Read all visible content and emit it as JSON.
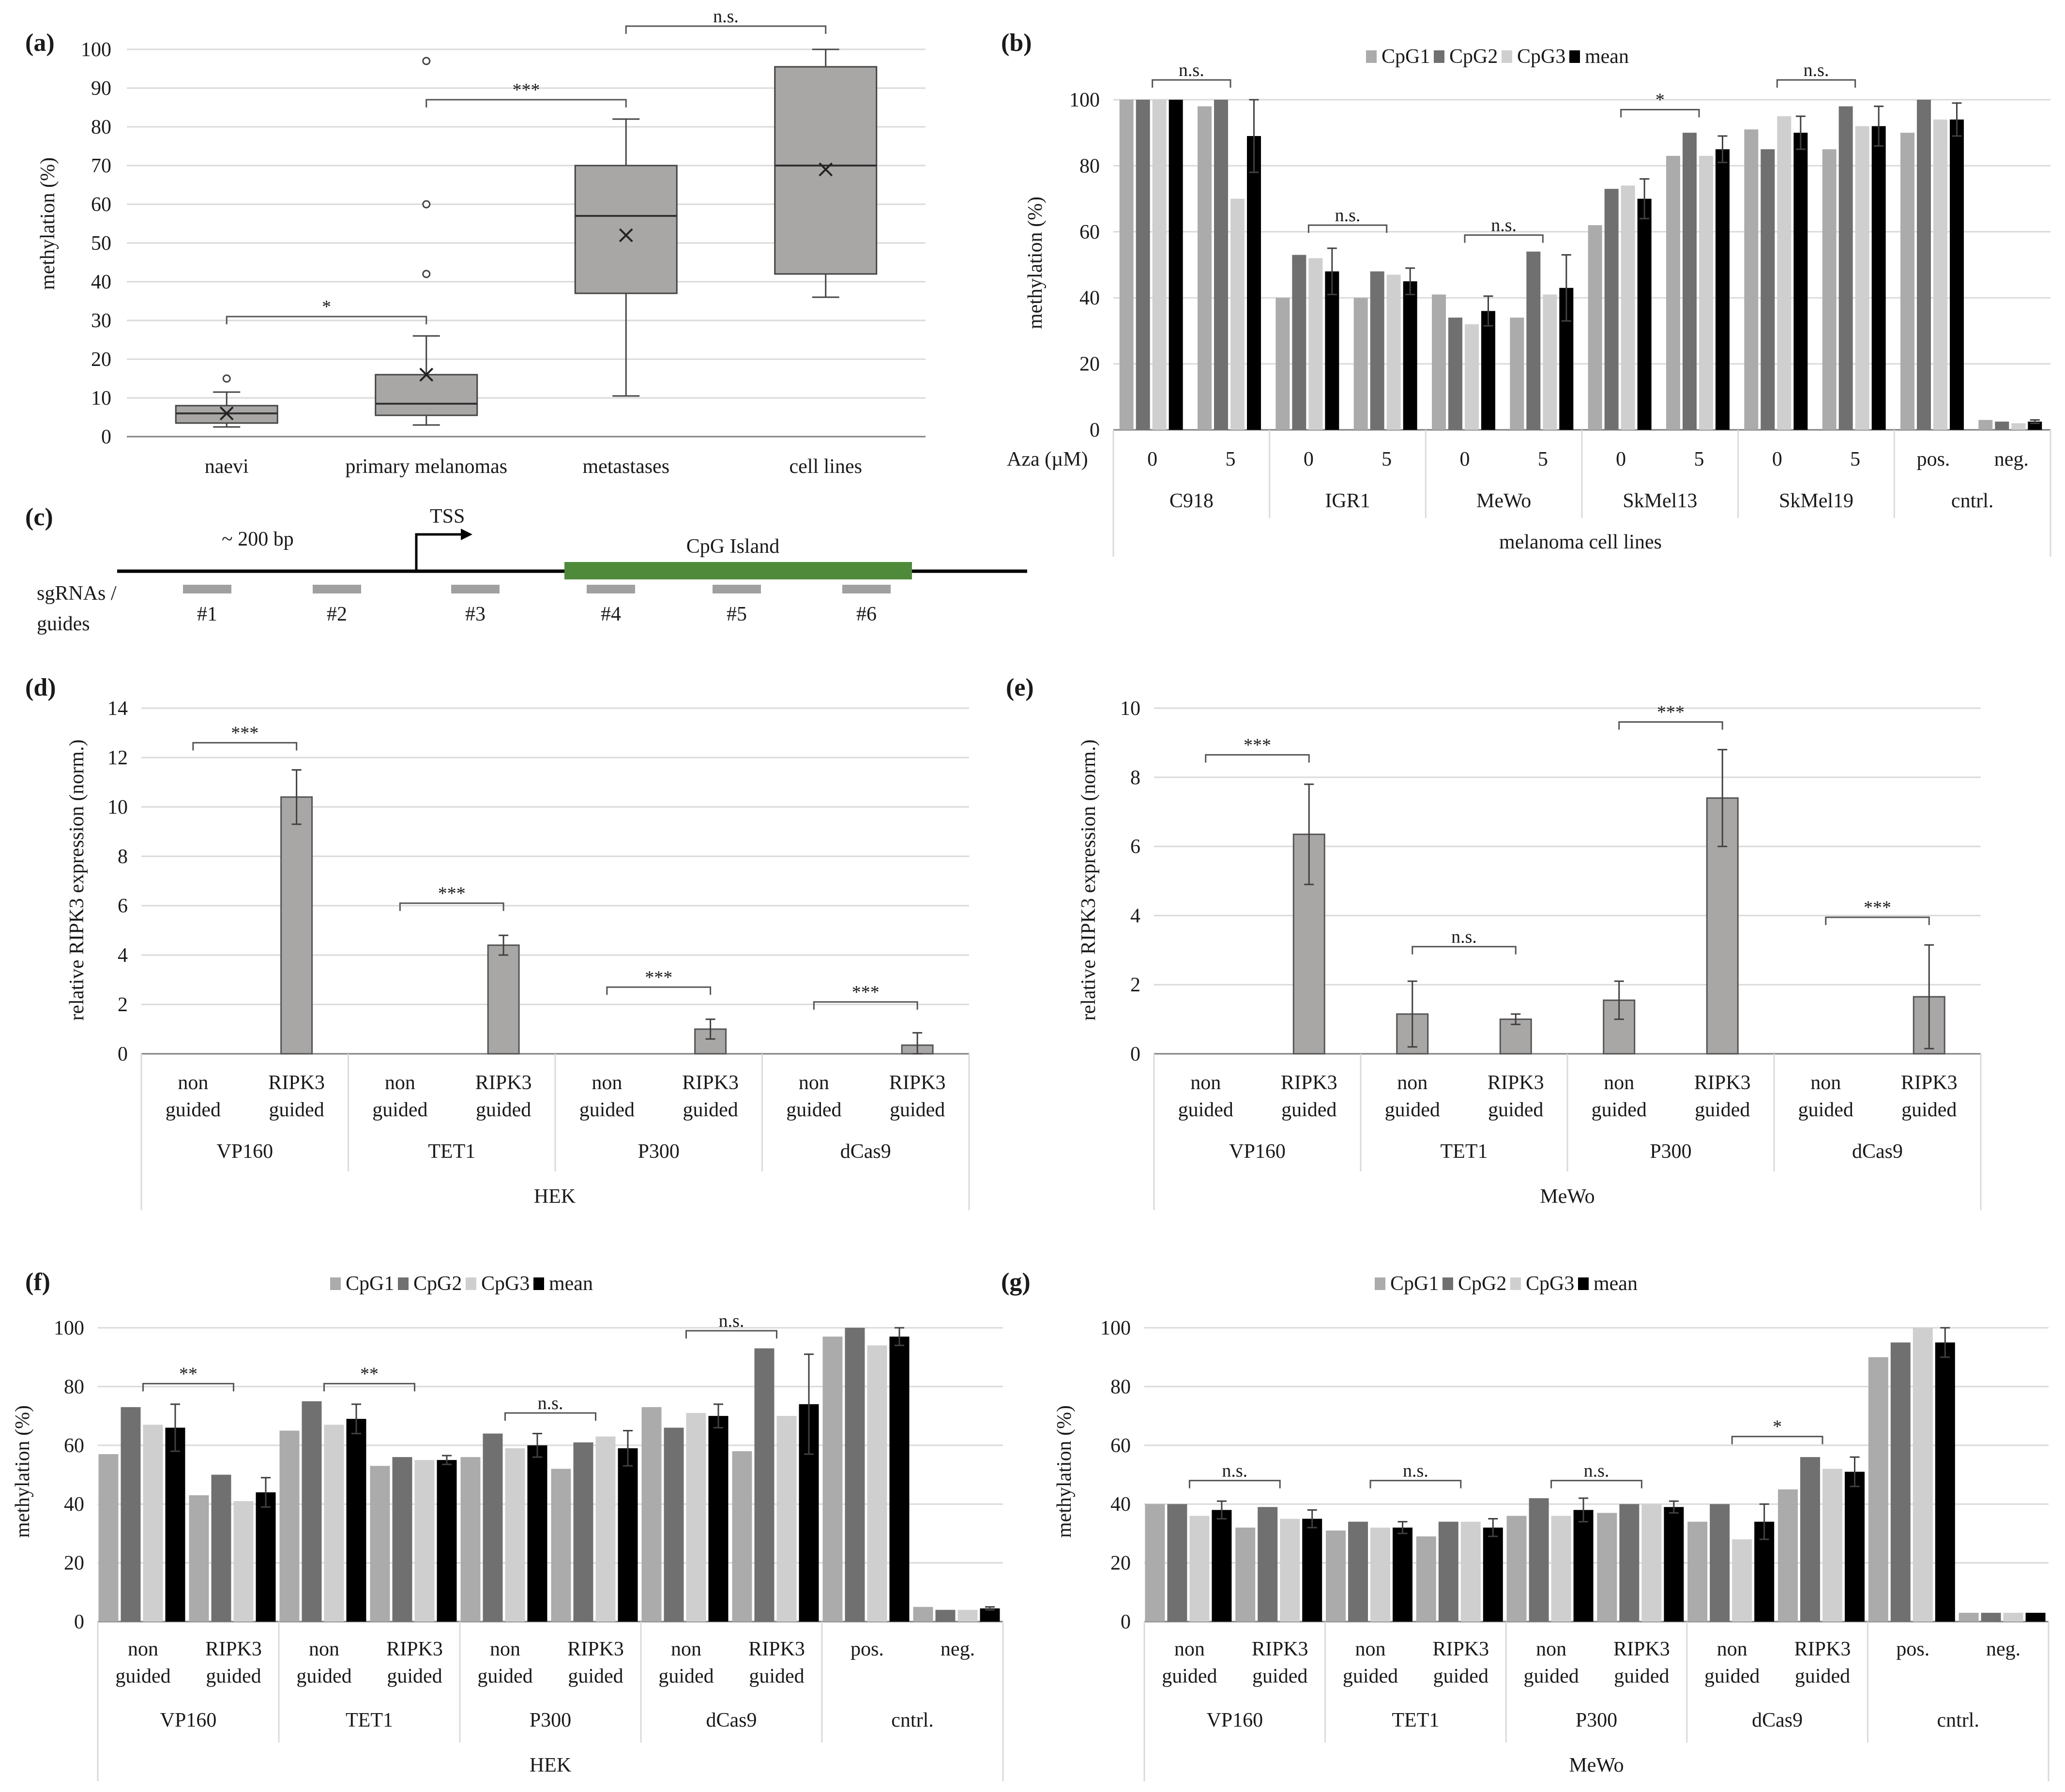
{
  "colors": {
    "cpg1": "#ababab",
    "cpg2": "#707070",
    "cpg3": "#cfcfcf",
    "mean": "#000000",
    "box": "#a9a6a6",
    "green": "#4e8a3a",
    "guide": "#a0a0a0",
    "grid": "#dadada",
    "axis": "#7f7f7f",
    "err": "#404040"
  },
  "chart_data": [
    {
      "id": "a",
      "panel_label": "(a)",
      "type": "box",
      "ylabel": "methylation (%)",
      "ylim": [
        0,
        100
      ],
      "yticks": [
        0,
        10,
        20,
        30,
        40,
        50,
        60,
        70,
        80,
        90,
        100
      ],
      "categories": [
        "naevi",
        "primary melanomas",
        "metastases",
        "cell lines"
      ],
      "boxes": [
        {
          "min": 2.5,
          "q1": 3.5,
          "median": 6,
          "q3": 8,
          "max": 11.5,
          "mean": 6,
          "outliers": [
            15
          ]
        },
        {
          "min": 3,
          "q1": 5.5,
          "median": 8.5,
          "q3": 16,
          "max": 26,
          "mean": 16,
          "outliers": [
            42,
            60,
            97
          ]
        },
        {
          "min": 10.5,
          "q1": 37,
          "median": 57,
          "q3": 70,
          "max": 82,
          "mean": 52,
          "outliers": []
        },
        {
          "min": 36,
          "q1": 42,
          "median": 70,
          "q3": 95.5,
          "max": 100,
          "mean": 69,
          "outliers": []
        }
      ],
      "significance": [
        {
          "from": 0,
          "to": 1,
          "label": "*",
          "y": 31
        },
        {
          "from": 1,
          "to": 2,
          "label": "***",
          "y": 87
        },
        {
          "from": 2,
          "to": 3,
          "label": "n.s.",
          "y": 106
        }
      ]
    },
    {
      "id": "b",
      "panel_label": "(b)",
      "type": "bar",
      "ylabel": "methylation (%)",
      "ylim": [
        0,
        100
      ],
      "yticks": [
        0,
        20,
        40,
        60,
        80,
        100
      ],
      "legend": [
        "CpG1",
        "CpG2",
        "CpG3",
        "mean"
      ],
      "row_label": "Aza (µM)",
      "bottom_label": "melanoma cell lines",
      "groups": [
        {
          "label": "C918",
          "clusters": [
            {
              "label": "0",
              "values": [
                100,
                100,
                100,
                100
              ],
              "err": 0
            },
            {
              "label": "5",
              "values": [
                98,
                100,
                70,
                89
              ],
              "err": 11
            }
          ]
        },
        {
          "label": "IGR1",
          "clusters": [
            {
              "label": "0",
              "values": [
                40,
                53,
                52,
                48
              ],
              "err": 7
            },
            {
              "label": "5",
              "values": [
                40,
                48,
                47,
                45
              ],
              "err": 4
            }
          ]
        },
        {
          "label": "MeWo",
          "clusters": [
            {
              "label": "0",
              "values": [
                41,
                34,
                32,
                36
              ],
              "err": 4.5
            },
            {
              "label": "5",
              "values": [
                34,
                54,
                41,
                43
              ],
              "err": 10
            }
          ]
        },
        {
          "label": "SkMel13",
          "clusters": [
            {
              "label": "0",
              "values": [
                62,
                73,
                74,
                70
              ],
              "err": 6
            },
            {
              "label": "5",
              "values": [
                83,
                90,
                83,
                85
              ],
              "err": 4
            }
          ]
        },
        {
          "label": "SkMel19",
          "clusters": [
            {
              "label": "0",
              "values": [
                91,
                85,
                95,
                90
              ],
              "err": 5
            },
            {
              "label": "5",
              "values": [
                85,
                98,
                92,
                92
              ],
              "err": 6
            }
          ]
        },
        {
          "label": "cntrl.",
          "clusters": [
            {
              "label": "pos.",
              "values": [
                90,
                100,
                94,
                94
              ],
              "err": 5
            },
            {
              "label": "neg.",
              "values": [
                3,
                2.5,
                2,
                2.5
              ],
              "err": 0.5
            }
          ]
        }
      ],
      "significance": [
        {
          "group": 0,
          "label": "n.s.",
          "y": 106
        },
        {
          "group": 1,
          "label": "n.s.",
          "y": 62
        },
        {
          "group": 2,
          "label": "n.s.",
          "y": 59
        },
        {
          "group": 3,
          "label": "*",
          "y": 97
        },
        {
          "group": 4,
          "label": "n.s.",
          "y": 106
        }
      ]
    },
    {
      "id": "c",
      "panel_label": "(c)",
      "type": "diagram",
      "scale_label": "~ 200 bp",
      "tss_label": "TSS",
      "island_label": "CpG Island",
      "guides_label": [
        "sgRNAs /",
        "guides"
      ],
      "guides": [
        "#1",
        "#2",
        "#3",
        "#4",
        "#5",
        "#6"
      ]
    },
    {
      "id": "d",
      "panel_label": "(d)",
      "type": "bar",
      "ylabel": "relative RIPK3 expression (norm.)",
      "ylim": [
        0,
        14
      ],
      "yticks": [
        0,
        2,
        4,
        6,
        8,
        10,
        12,
        14
      ],
      "bottom_label": "HEK",
      "groups": [
        {
          "label": "VP160",
          "clusters": [
            {
              "label": [
                "non",
                "guided"
              ],
              "value": 0,
              "err": 0
            },
            {
              "label": [
                "RIPK3",
                "guided"
              ],
              "value": 10.4,
              "err": 1.1
            }
          ]
        },
        {
          "label": "TET1",
          "clusters": [
            {
              "label": [
                "non",
                "guided"
              ],
              "value": 0,
              "err": 0
            },
            {
              "label": [
                "RIPK3",
                "guided"
              ],
              "value": 4.4,
              "err": 0.4
            }
          ]
        },
        {
          "label": "P300",
          "clusters": [
            {
              "label": [
                "non",
                "guided"
              ],
              "value": 0,
              "err": 0
            },
            {
              "label": [
                "RIPK3",
                "guided"
              ],
              "value": 1,
              "err": 0.4
            }
          ]
        },
        {
          "label": "dCas9",
          "clusters": [
            {
              "label": [
                "non",
                "guided"
              ],
              "value": 0,
              "err": 0
            },
            {
              "label": [
                "RIPK3",
                "guided"
              ],
              "value": 0.35,
              "err": 0.5
            }
          ]
        }
      ],
      "significance": [
        {
          "group": 0,
          "label": "***",
          "y": 12.6
        },
        {
          "group": 1,
          "label": "***",
          "y": 6.1
        },
        {
          "group": 2,
          "label": "***",
          "y": 2.7
        },
        {
          "group": 3,
          "label": "***",
          "y": 2.1
        }
      ]
    },
    {
      "id": "e",
      "panel_label": "(e)",
      "type": "bar",
      "ylabel": "relative RIPK3 expression (norm.)",
      "ylim": [
        0,
        10
      ],
      "yticks": [
        0,
        2,
        4,
        6,
        8,
        10
      ],
      "bottom_label": "MeWo",
      "groups": [
        {
          "label": "VP160",
          "clusters": [
            {
              "label": [
                "non",
                "guided"
              ],
              "value": 0,
              "err": 0
            },
            {
              "label": [
                "RIPK3",
                "guided"
              ],
              "value": 6.35,
              "err": 1.45
            }
          ]
        },
        {
          "label": "TET1",
          "clusters": [
            {
              "label": [
                "non",
                "guided"
              ],
              "value": 1.15,
              "err": 0.95
            },
            {
              "label": [
                "RIPK3",
                "guided"
              ],
              "value": 1,
              "err": 0.15
            }
          ]
        },
        {
          "label": "P300",
          "clusters": [
            {
              "label": [
                "non",
                "guided"
              ],
              "value": 1.55,
              "err": 0.55
            },
            {
              "label": [
                "RIPK3",
                "guided"
              ],
              "value": 7.4,
              "err": 1.4
            }
          ]
        },
        {
          "label": "dCas9",
          "clusters": [
            {
              "label": [
                "non",
                "guided"
              ],
              "value": 0,
              "err": 0
            },
            {
              "label": [
                "RIPK3",
                "guided"
              ],
              "value": 1.65,
              "err": 1.5
            }
          ]
        }
      ],
      "significance": [
        {
          "group": 0,
          "label": "***",
          "y": 8.65
        },
        {
          "group": 1,
          "label": "n.s.",
          "y": 3.1
        },
        {
          "group": 2,
          "label": "***",
          "y": 9.6
        },
        {
          "group": 3,
          "label": "***",
          "y": 3.95
        }
      ]
    },
    {
      "id": "f",
      "panel_label": "(f)",
      "type": "bar",
      "ylabel": "methylation (%)",
      "ylim": [
        0,
        100
      ],
      "yticks": [
        0,
        20,
        40,
        60,
        80,
        100
      ],
      "legend": [
        "CpG1",
        "CpG2",
        "CpG3",
        "mean"
      ],
      "bottom_label": "HEK",
      "groups": [
        {
          "label": "VP160",
          "clusters": [
            {
              "label": [
                "non",
                "guided"
              ],
              "values": [
                57,
                73,
                67,
                66
              ],
              "err": 8
            },
            {
              "label": [
                "RIPK3",
                "guided"
              ],
              "values": [
                43,
                50,
                41,
                44
              ],
              "err": 5
            }
          ]
        },
        {
          "label": "TET1",
          "clusters": [
            {
              "label": [
                "non",
                "guided"
              ],
              "values": [
                65,
                75,
                67,
                69
              ],
              "err": 5
            },
            {
              "label": [
                "RIPK3",
                "guided"
              ],
              "values": [
                53,
                56,
                55,
                55
              ],
              "err": 1.5
            }
          ]
        },
        {
          "label": "P300",
          "clusters": [
            {
              "label": [
                "non",
                "guided"
              ],
              "values": [
                56,
                64,
                59,
                60
              ],
              "err": 4
            },
            {
              "label": [
                "RIPK3",
                "guided"
              ],
              "values": [
                52,
                61,
                63,
                59
              ],
              "err": 6
            }
          ]
        },
        {
          "label": "dCas9",
          "clusters": [
            {
              "label": [
                "non",
                "guided"
              ],
              "values": [
                73,
                66,
                71,
                70
              ],
              "err": 4
            },
            {
              "label": [
                "RIPK3",
                "guided"
              ],
              "values": [
                58,
                93,
                70,
                74
              ],
              "err": 17
            }
          ]
        },
        {
          "label": "cntrl.",
          "clusters": [
            {
              "label": [
                "pos."
              ],
              "values": [
                97,
                100,
                94,
                97
              ],
              "err": 3
            },
            {
              "label": [
                "neg."
              ],
              "values": [
                5,
                4,
                4,
                4.5
              ],
              "err": 0.5
            }
          ]
        }
      ],
      "significance": [
        {
          "group": 0,
          "label": "**",
          "y": 81
        },
        {
          "group": 1,
          "label": "**",
          "y": 81
        },
        {
          "group": 2,
          "label": "n.s.",
          "y": 71
        },
        {
          "group": 3,
          "label": "n.s.",
          "y": 99
        }
      ]
    },
    {
      "id": "g",
      "panel_label": "(g)",
      "type": "bar",
      "ylabel": "methylation (%)",
      "ylim": [
        0,
        100
      ],
      "yticks": [
        0,
        20,
        40,
        60,
        80,
        100
      ],
      "legend": [
        "CpG1",
        "CpG2",
        "CpG3",
        "mean"
      ],
      "bottom_label": "MeWo",
      "groups": [
        {
          "label": "VP160",
          "clusters": [
            {
              "label": [
                "non",
                "guided"
              ],
              "values": [
                40,
                40,
                36,
                38
              ],
              "err": 3
            },
            {
              "label": [
                "RIPK3",
                "guided"
              ],
              "values": [
                32,
                39,
                35,
                35
              ],
              "err": 3
            }
          ]
        },
        {
          "label": "TET1",
          "clusters": [
            {
              "label": [
                "non",
                "guided"
              ],
              "values": [
                31,
                34,
                32,
                32
              ],
              "err": 2
            },
            {
              "label": [
                "RIPK3",
                "guided"
              ],
              "values": [
                29,
                34,
                34,
                32
              ],
              "err": 3
            }
          ]
        },
        {
          "label": "P300",
          "clusters": [
            {
              "label": [
                "non",
                "guided"
              ],
              "values": [
                36,
                42,
                36,
                38
              ],
              "err": 4
            },
            {
              "label": [
                "RIPK3",
                "guided"
              ],
              "values": [
                37,
                40,
                40,
                39
              ],
              "err": 2
            }
          ]
        },
        {
          "label": "dCas9",
          "clusters": [
            {
              "label": [
                "non",
                "guided"
              ],
              "values": [
                34,
                40,
                28,
                34
              ],
              "err": 6
            },
            {
              "label": [
                "RIPK3",
                "guided"
              ],
              "values": [
                45,
                56,
                52,
                51
              ],
              "err": 5
            }
          ]
        },
        {
          "label": "cntrl.",
          "clusters": [
            {
              "label": [
                "pos."
              ],
              "values": [
                90,
                95,
                100,
                95
              ],
              "err": 5
            },
            {
              "label": [
                "neg."
              ],
              "values": [
                3,
                3,
                3,
                3
              ],
              "err": 0
            }
          ]
        }
      ],
      "significance": [
        {
          "group": 0,
          "label": "n.s.",
          "y": 48
        },
        {
          "group": 1,
          "label": "n.s.",
          "y": 48
        },
        {
          "group": 2,
          "label": "n.s.",
          "y": 48
        },
        {
          "group": 3,
          "label": "*",
          "y": 63
        }
      ]
    }
  ]
}
